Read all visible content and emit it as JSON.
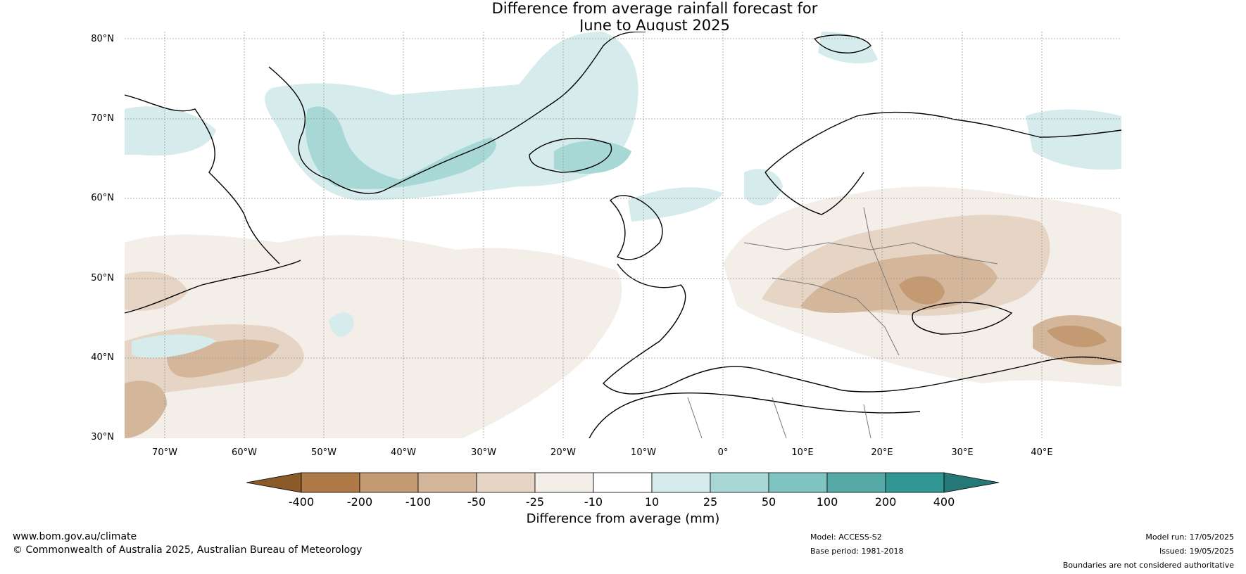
{
  "title": {
    "line1": "Difference from average rainfall forecast for",
    "line2": "June to August 2025"
  },
  "map": {
    "lat_labels": [
      "80°N",
      "70°N",
      "60°N",
      "50°N",
      "40°N",
      "30°N"
    ],
    "lon_labels": [
      "70°W",
      "60°W",
      "50°W",
      "40°W",
      "30°W",
      "20°W",
      "10°W",
      "0°",
      "10°E",
      "20°E",
      "30°E",
      "40°E"
    ]
  },
  "colorbar": {
    "title": "Difference from average (mm)",
    "ticks": [
      "-400",
      "-200",
      "-100",
      "-50",
      "-25",
      "-10",
      "10",
      "25",
      "50",
      "100",
      "200",
      "400"
    ],
    "colors": [
      "#8a5a28",
      "#b07a48",
      "#c39a72",
      "#d4b69a",
      "#e6d4c4",
      "#f4eee9",
      "#ffffff",
      "#d6ecec",
      "#a8d8d6",
      "#80c4c2",
      "#55aaa8",
      "#319795",
      "#247878"
    ]
  },
  "footer": {
    "website": "www.bom.gov.au/climate",
    "copyright": "© Commonwealth of Australia 2025, Australian Bureau of Meteorology",
    "model": "Model: ACCESS-S2",
    "base_period": "Base period: 1981-2018",
    "model_run": "Model run: 17/05/2025",
    "issued": "Issued: 19/05/2025",
    "disclaimer": "Boundaries are not considered authoritative"
  }
}
